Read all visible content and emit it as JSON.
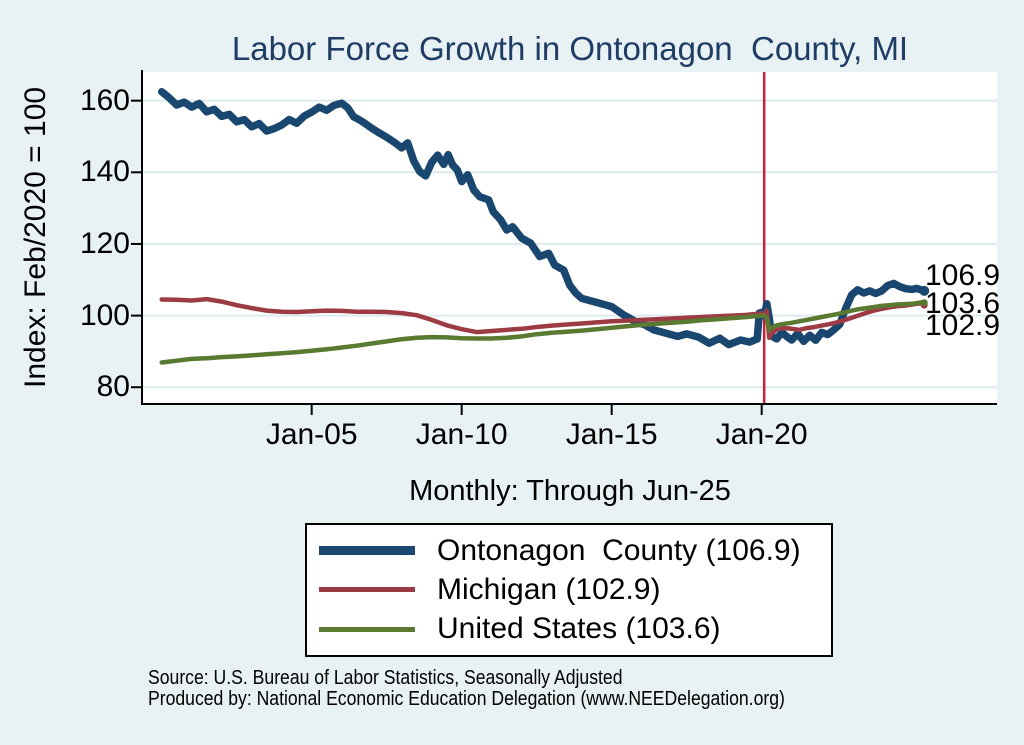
{
  "title": "Labor Force Growth in Ontonagon  County, MI",
  "y_axis_title": "Index: Feb/2020 = 100",
  "x_axis_subtitle": "Monthly: Through Jun-25",
  "source_line1": "Source: U.S. Bureau of Labor Statistics, Seasonally Adjusted",
  "source_line2": "Produced by: National Economic Education Delegation (www.NEEDelegation.org)",
  "colors": {
    "background": "#e8f1f3",
    "plot_background": "#ffffff",
    "gridline": "#dceaee",
    "axis": "#000000",
    "title_text": "#1e3c64",
    "ontonagon_navy": "#1a476f",
    "michigan_maroon": "#9d3b44",
    "us_green": "#5a7a32",
    "event_line_red": "#c2223a"
  },
  "chart_data": {
    "type": "line",
    "title": "Labor Force Growth in Ontonagon  County, MI",
    "xlabel": "Monthly: Through Jun-25",
    "ylabel": "Index: Feb/2020 = 100",
    "grid": "horizontal-only",
    "legend_position": "below-chart-box",
    "x_range": [
      1999.377,
      2027.844
    ],
    "y_range": [
      75.6,
      168.0
    ],
    "y_ticks": [
      80,
      100,
      120,
      140,
      160
    ],
    "x_ticks": [
      {
        "t": 2005.0,
        "label": "Jan-05"
      },
      {
        "t": 2010.0,
        "label": "Jan-10"
      },
      {
        "t": 2015.0,
        "label": "Jan-15"
      },
      {
        "t": 2020.0,
        "label": "Jan-20"
      }
    ],
    "vline_t": 2020.083,
    "series": [
      {
        "name": "Ontonagon County",
        "legend_label": "Ontonagon  County (106.9)",
        "end_label": "106.9",
        "color": "#1a476f",
        "width": 7.5,
        "points": [
          [
            2000.0,
            162.5
          ],
          [
            2000.25,
            160.8
          ],
          [
            2000.5,
            158.8
          ],
          [
            2000.75,
            159.6
          ],
          [
            2001.0,
            158.2
          ],
          [
            2001.25,
            159.2
          ],
          [
            2001.5,
            156.9
          ],
          [
            2001.75,
            157.6
          ],
          [
            2002.0,
            155.6
          ],
          [
            2002.25,
            156.2
          ],
          [
            2002.5,
            154.1
          ],
          [
            2002.75,
            154.7
          ],
          [
            2003.0,
            152.7
          ],
          [
            2003.25,
            153.6
          ],
          [
            2003.5,
            151.5
          ],
          [
            2003.75,
            152.2
          ],
          [
            2004.0,
            153.2
          ],
          [
            2004.25,
            154.7
          ],
          [
            2004.5,
            153.7
          ],
          [
            2004.75,
            155.7
          ],
          [
            2005.0,
            156.8
          ],
          [
            2005.25,
            158.2
          ],
          [
            2005.5,
            157.3
          ],
          [
            2005.75,
            158.7
          ],
          [
            2006.0,
            159.3
          ],
          [
            2006.2,
            158.0
          ],
          [
            2006.4,
            155.5
          ],
          [
            2006.6,
            154.6
          ],
          [
            2006.8,
            153.5
          ],
          [
            2007.0,
            152.3
          ],
          [
            2007.25,
            151.0
          ],
          [
            2007.5,
            149.8
          ],
          [
            2007.75,
            148.4
          ],
          [
            2008.0,
            146.8
          ],
          [
            2008.2,
            148.2
          ],
          [
            2008.4,
            143.2
          ],
          [
            2008.6,
            140.2
          ],
          [
            2008.8,
            139.0
          ],
          [
            2009.0,
            142.8
          ],
          [
            2009.2,
            144.8
          ],
          [
            2009.4,
            142.2
          ],
          [
            2009.55,
            144.9
          ],
          [
            2009.7,
            142.0
          ],
          [
            2009.85,
            140.7
          ],
          [
            2010.0,
            137.4
          ],
          [
            2010.2,
            139.3
          ],
          [
            2010.4,
            135.1
          ],
          [
            2010.6,
            133.2
          ],
          [
            2010.9,
            132.3
          ],
          [
            2011.05,
            129.0
          ],
          [
            2011.3,
            126.7
          ],
          [
            2011.5,
            123.9
          ],
          [
            2011.7,
            124.8
          ],
          [
            2012.0,
            121.6
          ],
          [
            2012.3,
            120.2
          ],
          [
            2012.6,
            116.5
          ],
          [
            2012.9,
            117.4
          ],
          [
            2013.1,
            114.1
          ],
          [
            2013.4,
            112.7
          ],
          [
            2013.6,
            108.5
          ],
          [
            2013.8,
            106.3
          ],
          [
            2014.0,
            104.8
          ],
          [
            2014.4,
            103.9
          ],
          [
            2014.7,
            103.2
          ],
          [
            2015.0,
            102.5
          ],
          [
            2015.4,
            100.2
          ],
          [
            2015.8,
            98.3
          ],
          [
            2016.1,
            97.4
          ],
          [
            2016.4,
            96.0
          ],
          [
            2016.8,
            95.1
          ],
          [
            2017.2,
            94.2
          ],
          [
            2017.5,
            94.9
          ],
          [
            2017.9,
            94.0
          ],
          [
            2018.25,
            92.3
          ],
          [
            2018.6,
            93.7
          ],
          [
            2018.9,
            91.9
          ],
          [
            2019.3,
            93.2
          ],
          [
            2019.6,
            92.6
          ],
          [
            2019.85,
            93.5
          ],
          [
            2019.92,
            100.7
          ],
          [
            2020.0,
            100.9
          ],
          [
            2020.083,
            100.0
          ],
          [
            2020.17,
            103.3
          ],
          [
            2020.25,
            99.5
          ],
          [
            2020.33,
            94.3
          ],
          [
            2020.5,
            93.5
          ],
          [
            2020.67,
            95.3
          ],
          [
            2020.83,
            94.2
          ],
          [
            2021.0,
            93.2
          ],
          [
            2021.2,
            95.0
          ],
          [
            2021.4,
            92.8
          ],
          [
            2021.6,
            94.5
          ],
          [
            2021.8,
            93.1
          ],
          [
            2022.0,
            95.3
          ],
          [
            2022.2,
            94.7
          ],
          [
            2022.4,
            96.0
          ],
          [
            2022.6,
            97.5
          ],
          [
            2022.8,
            102.0
          ],
          [
            2023.0,
            105.8
          ],
          [
            2023.2,
            107.2
          ],
          [
            2023.4,
            106.3
          ],
          [
            2023.6,
            106.9
          ],
          [
            2023.8,
            106.2
          ],
          [
            2024.0,
            106.9
          ],
          [
            2024.2,
            108.4
          ],
          [
            2024.4,
            109.0
          ],
          [
            2024.6,
            108.1
          ],
          [
            2024.8,
            107.5
          ],
          [
            2025.0,
            107.3
          ],
          [
            2025.17,
            107.6
          ],
          [
            2025.42,
            106.9
          ]
        ]
      },
      {
        "name": "Michigan",
        "legend_label": "Michigan (102.9)",
        "end_label": "102.9",
        "color": "#9d3b44",
        "width": 4.5,
        "points": [
          [
            2000.0,
            104.5
          ],
          [
            2000.5,
            104.4
          ],
          [
            2001.0,
            104.2
          ],
          [
            2001.5,
            104.6
          ],
          [
            2002.0,
            103.9
          ],
          [
            2002.5,
            102.9
          ],
          [
            2003.0,
            102.1
          ],
          [
            2003.5,
            101.4
          ],
          [
            2004.0,
            101.1
          ],
          [
            2004.5,
            101.0
          ],
          [
            2005.0,
            101.2
          ],
          [
            2005.5,
            101.4
          ],
          [
            2006.0,
            101.3
          ],
          [
            2006.5,
            101.1
          ],
          [
            2007.0,
            101.1
          ],
          [
            2007.5,
            101.0
          ],
          [
            2008.0,
            100.7
          ],
          [
            2008.5,
            100.1
          ],
          [
            2009.0,
            98.8
          ],
          [
            2009.5,
            97.3
          ],
          [
            2010.0,
            96.2
          ],
          [
            2010.5,
            95.4
          ],
          [
            2011.0,
            95.7
          ],
          [
            2011.5,
            96.0
          ],
          [
            2012.0,
            96.3
          ],
          [
            2012.6,
            96.9
          ],
          [
            2013.0,
            97.2
          ],
          [
            2013.5,
            97.5
          ],
          [
            2014.0,
            97.8
          ],
          [
            2014.5,
            98.1
          ],
          [
            2015.0,
            98.4
          ],
          [
            2015.5,
            98.6
          ],
          [
            2016.0,
            98.8
          ],
          [
            2016.5,
            99.0
          ],
          [
            2017.0,
            99.2
          ],
          [
            2017.5,
            99.4
          ],
          [
            2018.0,
            99.6
          ],
          [
            2018.5,
            99.8
          ],
          [
            2019.0,
            100.0
          ],
          [
            2019.5,
            100.2
          ],
          [
            2019.83,
            100.5
          ],
          [
            2020.0,
            100.6
          ],
          [
            2020.083,
            100.0
          ],
          [
            2020.17,
            101.3
          ],
          [
            2020.25,
            93.8
          ],
          [
            2020.33,
            95.0
          ],
          [
            2020.5,
            96.2
          ],
          [
            2020.75,
            96.5
          ],
          [
            2021.0,
            96.3
          ],
          [
            2021.25,
            96.0
          ],
          [
            2021.5,
            96.5
          ],
          [
            2021.75,
            96.8
          ],
          [
            2022.0,
            97.2
          ],
          [
            2022.25,
            97.6
          ],
          [
            2022.5,
            98.1
          ],
          [
            2022.75,
            98.7
          ],
          [
            2023.0,
            99.4
          ],
          [
            2023.25,
            100.1
          ],
          [
            2023.5,
            100.8
          ],
          [
            2023.75,
            101.4
          ],
          [
            2024.0,
            101.9
          ],
          [
            2024.25,
            102.3
          ],
          [
            2024.5,
            102.6
          ],
          [
            2024.75,
            102.8
          ],
          [
            2025.0,
            103.1
          ],
          [
            2025.17,
            103.3
          ],
          [
            2025.33,
            103.4
          ],
          [
            2025.42,
            102.9
          ]
        ]
      },
      {
        "name": "United States",
        "legend_label": "United States (103.6)",
        "end_label": "103.6",
        "color": "#5a7a32",
        "width": 4.5,
        "points": [
          [
            2000.0,
            86.9
          ],
          [
            2000.5,
            87.4
          ],
          [
            2001.0,
            87.9
          ],
          [
            2001.5,
            88.1
          ],
          [
            2002.0,
            88.4
          ],
          [
            2002.5,
            88.6
          ],
          [
            2003.0,
            88.9
          ],
          [
            2003.5,
            89.2
          ],
          [
            2004.0,
            89.5
          ],
          [
            2004.5,
            89.8
          ],
          [
            2005.0,
            90.2
          ],
          [
            2005.5,
            90.6
          ],
          [
            2006.0,
            91.1
          ],
          [
            2006.5,
            91.6
          ],
          [
            2007.0,
            92.2
          ],
          [
            2007.5,
            92.8
          ],
          [
            2008.0,
            93.4
          ],
          [
            2008.5,
            93.8
          ],
          [
            2009.0,
            94.0
          ],
          [
            2009.5,
            93.9
          ],
          [
            2010.0,
            93.7
          ],
          [
            2010.5,
            93.6
          ],
          [
            2011.0,
            93.6
          ],
          [
            2011.5,
            93.8
          ],
          [
            2012.0,
            94.2
          ],
          [
            2012.5,
            94.8
          ],
          [
            2013.0,
            95.2
          ],
          [
            2013.5,
            95.5
          ],
          [
            2014.0,
            95.8
          ],
          [
            2014.5,
            96.2
          ],
          [
            2015.0,
            96.6
          ],
          [
            2015.5,
            97.0
          ],
          [
            2016.0,
            97.4
          ],
          [
            2016.5,
            97.7
          ],
          [
            2017.0,
            98.0
          ],
          [
            2017.5,
            98.3
          ],
          [
            2018.0,
            98.7
          ],
          [
            2018.5,
            99.0
          ],
          [
            2019.0,
            99.3
          ],
          [
            2019.5,
            99.6
          ],
          [
            2020.0,
            100.0
          ],
          [
            2020.083,
            100.0
          ],
          [
            2020.17,
            99.4
          ],
          [
            2020.25,
            95.9
          ],
          [
            2020.33,
            96.6
          ],
          [
            2020.5,
            97.3
          ],
          [
            2020.75,
            97.7
          ],
          [
            2021.0,
            98.0
          ],
          [
            2021.25,
            98.4
          ],
          [
            2021.5,
            98.8
          ],
          [
            2021.75,
            99.2
          ],
          [
            2022.0,
            99.6
          ],
          [
            2022.25,
            100.0
          ],
          [
            2022.5,
            100.4
          ],
          [
            2022.75,
            100.9
          ],
          [
            2023.0,
            101.4
          ],
          [
            2023.25,
            101.8
          ],
          [
            2023.5,
            102.1
          ],
          [
            2023.75,
            102.4
          ],
          [
            2024.0,
            102.7
          ],
          [
            2024.25,
            102.9
          ],
          [
            2024.5,
            103.1
          ],
          [
            2024.75,
            103.2
          ],
          [
            2025.0,
            103.3
          ],
          [
            2025.17,
            103.5
          ],
          [
            2025.33,
            103.7
          ],
          [
            2025.42,
            103.6
          ]
        ]
      }
    ]
  }
}
